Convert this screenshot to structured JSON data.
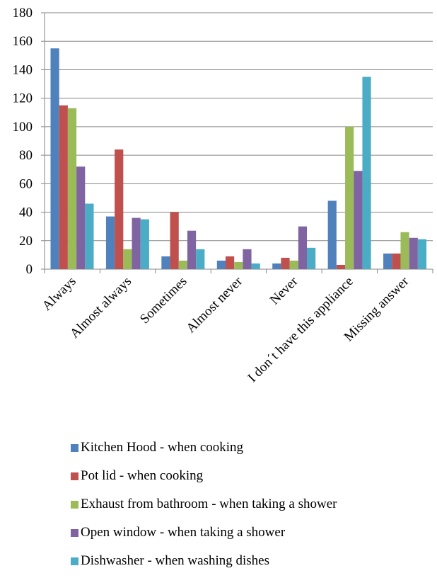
{
  "chart_data": {
    "type": "bar",
    "title": "",
    "xlabel": "",
    "ylabel": "",
    "ylim": [
      0,
      180
    ],
    "yticks": [
      0,
      20,
      40,
      60,
      80,
      100,
      120,
      140,
      160,
      180
    ],
    "grid": true,
    "legend_position": "bottom",
    "categories": [
      "Always",
      "Almost always",
      "Sometimes",
      "Almost never",
      "Never",
      "I don´t have this appliance",
      "Missing answer"
    ],
    "series": [
      {
        "name": "Kitchen Hood - when cooking",
        "color": "#4F81BD",
        "values": [
          155,
          37,
          9,
          6,
          4,
          48,
          11
        ]
      },
      {
        "name": "Pot lid - when cooking",
        "color": "#C0504D",
        "values": [
          115,
          84,
          40,
          9,
          8,
          3,
          11
        ]
      },
      {
        "name": "Exhaust from bathroom - when taking a shower",
        "color": "#9BBB59",
        "values": [
          113,
          14,
          6,
          5,
          6,
          100,
          26
        ]
      },
      {
        "name": "Open window - when taking a shower",
        "color": "#8064A2",
        "values": [
          72,
          36,
          27,
          14,
          30,
          69,
          22
        ]
      },
      {
        "name": "Dishwasher - when washing dishes",
        "color": "#4BACC6",
        "values": [
          46,
          35,
          14,
          4,
          15,
          135,
          21
        ]
      }
    ]
  }
}
